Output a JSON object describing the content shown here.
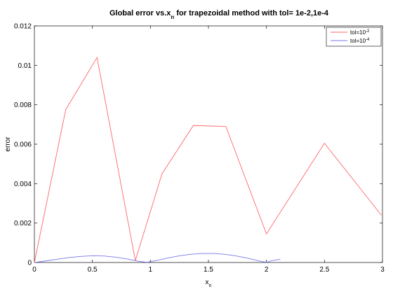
{
  "chart_data": {
    "type": "line",
    "title": {
      "main": "Global error vs.x",
      "sub": "n",
      "rest": " for trapezoidal method with tol= 1e-2,1e-4"
    },
    "xlabel": {
      "main": "x",
      "sub": "n"
    },
    "ylabel": "error",
    "xlim": [
      0,
      3
    ],
    "ylim": [
      0,
      0.012
    ],
    "x_ticks": [
      0,
      0.5,
      1,
      1.5,
      2,
      2.5,
      3
    ],
    "x_tick_labels": [
      "0",
      "0.5",
      "1",
      "1.5",
      "2",
      "2.5",
      "3"
    ],
    "y_ticks": [
      0,
      0.002,
      0.004,
      0.006,
      0.008,
      0.01,
      0.012
    ],
    "y_tick_labels": [
      "0",
      "0.002",
      "0.004",
      "0.006",
      "0.008",
      "0.01",
      "0.012"
    ],
    "grid": false,
    "legend_position": "top-right",
    "series": [
      {
        "name": "tol=10",
        "name_sup": "-2",
        "color": "#ff6666",
        "x": [
          0,
          0.27,
          0.54,
          0.87,
          1.1,
          1.37,
          1.65,
          2.0,
          2.5,
          2.99
        ],
        "y": [
          0,
          0.00775,
          0.0104,
          0.0001,
          0.0045,
          0.00695,
          0.0069,
          0.00145,
          0.00605,
          0.0024
        ]
      },
      {
        "name": "tol=10",
        "name_sup": "-4",
        "color": "#7777ee",
        "x": [
          0,
          0.1,
          0.2,
          0.3,
          0.4,
          0.5,
          0.6,
          0.7,
          0.8,
          0.9,
          0.97,
          1.05,
          1.15,
          1.25,
          1.35,
          1.45,
          1.55,
          1.65,
          1.75,
          1.85,
          1.95,
          2.0,
          2.05,
          2.12
        ],
        "y": [
          0,
          8e-05,
          0.00017,
          0.00025,
          0.00031,
          0.00034,
          0.00033,
          0.00027,
          0.00018,
          6e-05,
          1e-05,
          0.0001,
          0.00023,
          0.00034,
          0.00042,
          0.00046,
          0.00046,
          0.00041,
          0.00032,
          0.0002,
          6e-05,
          1e-05,
          0.0001,
          0.00016
        ]
      }
    ]
  }
}
